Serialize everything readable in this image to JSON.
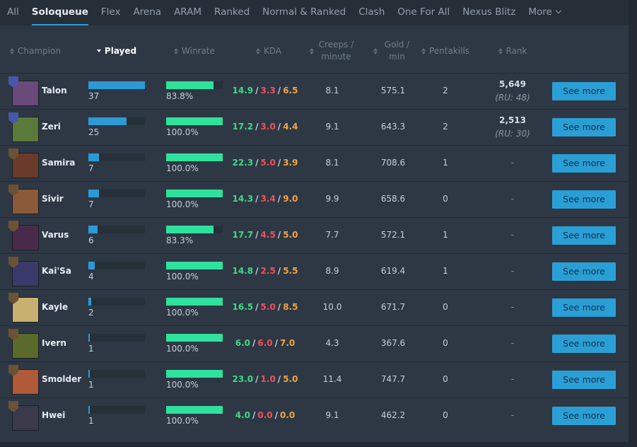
{
  "tabs": [
    "All",
    "Soloqueue",
    "Flex",
    "Arena",
    "ARAM",
    "Ranked",
    "Normal & Ranked",
    "Clash",
    "One For All",
    "Nexus Blitz",
    "More"
  ],
  "active_tab": 1,
  "columns": [
    "Champion",
    "Played",
    "Winrate",
    "KDA",
    "Creeps / minute",
    "Gold / min",
    "Pentakills",
    "Rank"
  ],
  "kda_separator": "/",
  "button_label": "See more",
  "rows": [
    {
      "champion": "Talon",
      "played": 37,
      "winrate": {
        "value": 83.8,
        "label": "83.8%"
      },
      "kills": "14.9",
      "deaths": "3.3",
      "assists": "6.5",
      "creeps": "8.1",
      "gold": "575.1",
      "pentakills": 2,
      "rank": "5,649",
      "rank_sub": "(RU: 48)"
    },
    {
      "champion": "Zeri",
      "played": 25,
      "winrate": {
        "value": 100,
        "label": "100.0%"
      },
      "kills": "17.2",
      "deaths": "3.0",
      "assists": "4.4",
      "creeps": "9.1",
      "gold": "643.3",
      "pentakills": 2,
      "rank": "2,513",
      "rank_sub": "(RU: 30)"
    },
    {
      "champion": "Samira",
      "played": 7,
      "winrate": {
        "value": 100,
        "label": "100.0%"
      },
      "kills": "22.3",
      "deaths": "5.0",
      "assists": "3.9",
      "creeps": "8.1",
      "gold": "708.6",
      "pentakills": 1,
      "rank": "-"
    },
    {
      "champion": "Sivir",
      "played": 7,
      "winrate": {
        "value": 100,
        "label": "100.0%"
      },
      "kills": "14.3",
      "deaths": "3.4",
      "assists": "9.0",
      "creeps": "9.9",
      "gold": "658.6",
      "pentakills": 0,
      "rank": "-"
    },
    {
      "champion": "Varus",
      "played": 6,
      "winrate": {
        "value": 83.3,
        "label": "83.3%"
      },
      "kills": "17.7",
      "deaths": "4.5",
      "assists": "5.0",
      "creeps": "7.7",
      "gold": "572.1",
      "pentakills": 1,
      "rank": "-"
    },
    {
      "champion": "Kai'Sa",
      "played": 4,
      "winrate": {
        "value": 100,
        "label": "100.0%"
      },
      "kills": "14.8",
      "deaths": "2.5",
      "assists": "5.5",
      "creeps": "8.9",
      "gold": "619.4",
      "pentakills": 1,
      "rank": "-"
    },
    {
      "champion": "Kayle",
      "played": 2,
      "winrate": {
        "value": 100,
        "label": "100.0%"
      },
      "kills": "16.5",
      "deaths": "5.0",
      "assists": "8.5",
      "creeps": "10.0",
      "gold": "671.7",
      "pentakills": 0,
      "rank": "-"
    },
    {
      "champion": "Ivern",
      "played": 1,
      "winrate": {
        "value": 100,
        "label": "100.0%"
      },
      "kills": "6.0",
      "deaths": "6.0",
      "assists": "7.0",
      "creeps": "4.3",
      "gold": "367.6",
      "pentakills": 0,
      "rank": "-"
    },
    {
      "champion": "Smolder",
      "played": 1,
      "winrate": {
        "value": 100,
        "label": "100.0%"
      },
      "kills": "23.0",
      "deaths": "1.0",
      "assists": "5.0",
      "creeps": "11.4",
      "gold": "747.7",
      "pentakills": 0,
      "rank": "-"
    },
    {
      "champion": "Hwei",
      "played": 1,
      "winrate": {
        "value": 100,
        "label": "100.0%"
      },
      "kills": "4.0",
      "deaths": "0.0",
      "assists": "0.0",
      "creeps": "9.1",
      "gold": "462.2",
      "pentakills": 0,
      "rank": "-"
    }
  ]
}
